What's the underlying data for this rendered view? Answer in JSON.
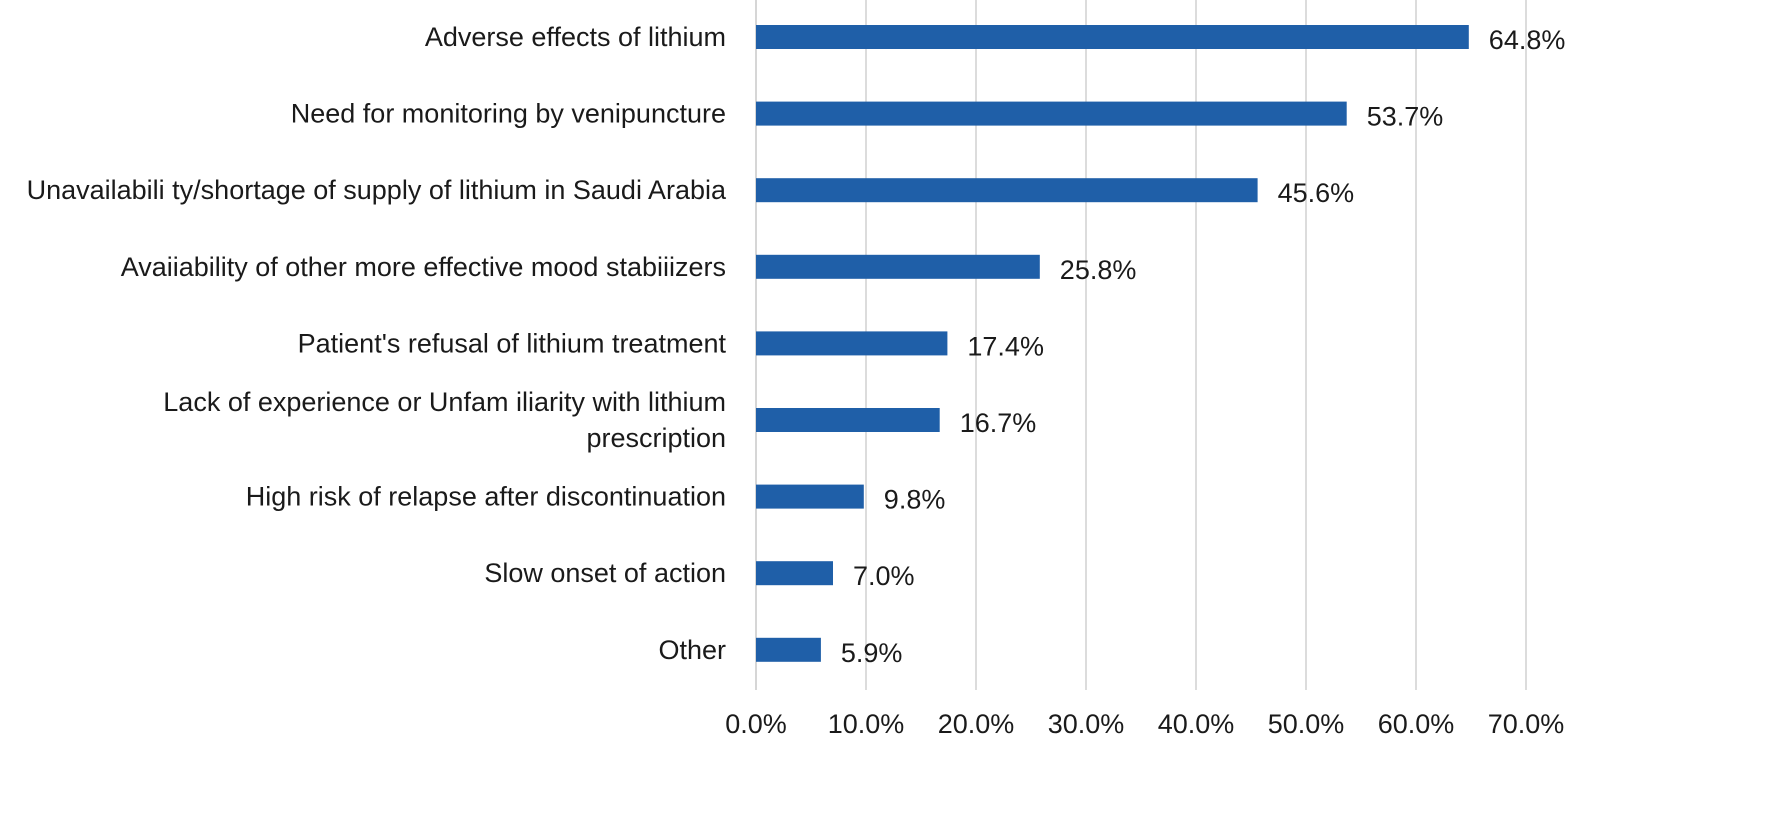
{
  "chart_data": {
    "type": "bar",
    "orientation": "horizontal",
    "categories": [
      [
        "Adverse effects of lithium"
      ],
      [
        "Need for monitoring by venipuncture"
      ],
      [
        "Unavailabili ty/shortage of supply of lithium in Saudi Arabia"
      ],
      [
        "Avaiiability of other more effective mood stabiiizers"
      ],
      [
        "Patient's refusal of lithium treatment"
      ],
      [
        "Lack of experience or Unfam iliarity with lithium",
        "prescription"
      ],
      [
        "High risk of relapse after discontinuation"
      ],
      [
        "Slow onset of action"
      ],
      [
        "Other"
      ]
    ],
    "values": [
      64.8,
      53.7,
      45.6,
      25.8,
      17.4,
      16.7,
      9.8,
      7.0,
      5.9
    ],
    "data_labels": [
      "64.8%",
      "53.7%",
      "45.6%",
      "25.8%",
      "17.4%",
      "16.7%",
      "9.8%",
      "7.0%",
      "5.9%"
    ],
    "xlim": [
      0,
      70
    ],
    "xticks": [
      0,
      10,
      20,
      30,
      40,
      50,
      60,
      70
    ],
    "xtick_labels": [
      "0.0%",
      "10.0%",
      "20.0%",
      "30.0%",
      "40.0%",
      "50.0%",
      "60.0%",
      "70.0%"
    ],
    "title": "",
    "xlabel": "",
    "ylabel": "",
    "grid": "vertical",
    "legend": "none",
    "bar_color": "#1f5fa8"
  }
}
